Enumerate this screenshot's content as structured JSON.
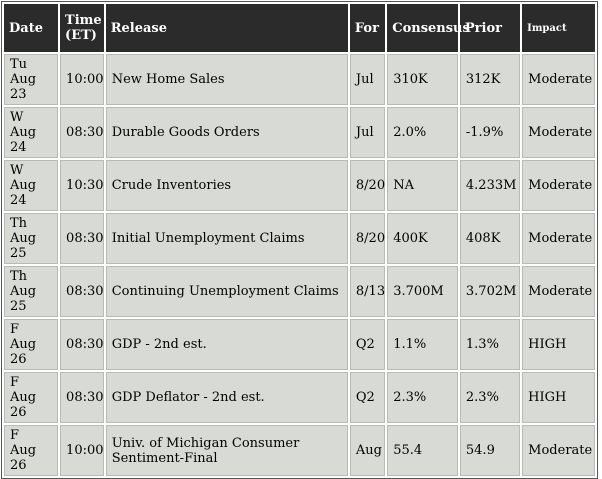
{
  "columns": {
    "date": "Date",
    "time": "Time (ET)",
    "release": "Release",
    "for": "For",
    "consensus": "Consensus",
    "prior": "Prior",
    "impact": "Impact"
  },
  "rows": [
    {
      "day": "Tu",
      "date": "Aug 23",
      "time": "10:00",
      "release": "New Home Sales",
      "for": "Jul",
      "consensus": "310K",
      "prior": "312K",
      "impact": "Moderate"
    },
    {
      "day": "W",
      "date": "Aug 24",
      "time": "08:30",
      "release": "Durable Goods Orders",
      "for": "Jul",
      "consensus": "2.0%",
      "prior": "-1.9%",
      "impact": "Moderate"
    },
    {
      "day": "W",
      "date": "Aug 24",
      "time": "10:30",
      "release": "Crude Inventories",
      "for": "8/20",
      "consensus": "NA",
      "prior": "4.233M",
      "impact": "Moderate"
    },
    {
      "day": "Th",
      "date": "Aug 25",
      "time": "08:30",
      "release": "Initial Unemployment Claims",
      "for": "8/20",
      "consensus": "400K",
      "prior": "408K",
      "impact": "Moderate"
    },
    {
      "day": "Th",
      "date": "Aug 25",
      "time": "08:30",
      "release": "Continuing Unemployment Claims",
      "for": "8/13",
      "consensus": "3.700M",
      "prior": "3.702M",
      "impact": "Moderate"
    },
    {
      "day": "F",
      "date": "Aug 26",
      "time": "08:30",
      "release": "GDP - 2nd est.",
      "for": "Q2",
      "consensus": "1.1%",
      "prior": "1.3%",
      "impact": "HIGH"
    },
    {
      "day": "F",
      "date": "Aug 26",
      "time": "08:30",
      "release": "GDP Deflator - 2nd est.",
      "for": "Q2",
      "consensus": "2.3%",
      "prior": "2.3%",
      "impact": "HIGH"
    },
    {
      "day": "F",
      "date": "Aug 26",
      "time": "10:00",
      "release": "Univ. of Michigan Consumer Sentiment-Final",
      "for": "Aug",
      "consensus": "55.4",
      "prior": "54.9",
      "impact": "Moderate"
    }
  ]
}
